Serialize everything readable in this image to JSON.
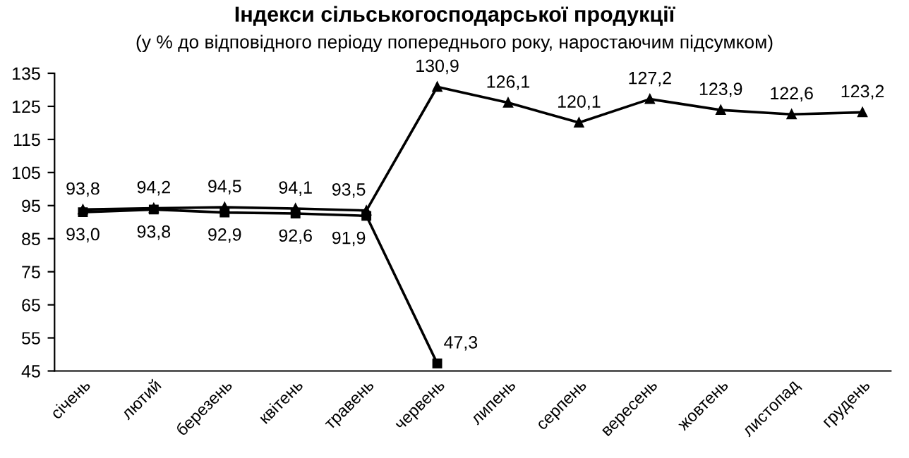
{
  "chart_data": {
    "type": "line",
    "title": "Індекси сільськогосподарської продукції",
    "subtitle": "(у % до відповідного періоду попереднього року, наростаючим підсумком)",
    "categories": [
      "січень",
      "лютий",
      "березень",
      "квітень",
      "травень",
      "червень",
      "липень",
      "серпень",
      "вересень",
      "жовтень",
      "листопад",
      "грудень"
    ],
    "series": [
      {
        "color": "#000000",
        "marker": "triangle",
        "values": [
          93.8,
          94.2,
          94.5,
          94.1,
          93.5,
          130.9,
          126.1,
          120.1,
          127.2,
          123.9,
          122.6,
          123.2
        ],
        "value_labels": [
          "93,8",
          "94,2",
          "94,5",
          "94,1",
          "93,5",
          "130,9",
          "126,1",
          "120,1",
          "127,2",
          "123,9",
          "122,6",
          "123,2"
        ]
      },
      {
        "color": "#000000",
        "marker": "square",
        "values": [
          93.0,
          93.8,
          92.9,
          92.6,
          91.9,
          47.3,
          null,
          null,
          null,
          null,
          null,
          null
        ],
        "value_labels": [
          "93,0",
          "93,8",
          "92,9",
          "92,6",
          "91,9",
          "47,3",
          null,
          null,
          null,
          null,
          null,
          null
        ]
      }
    ],
    "ylim": [
      45,
      135
    ],
    "yticks": [
      45,
      55,
      65,
      75,
      85,
      95,
      105,
      115,
      125,
      135
    ],
    "grid": false,
    "legend": false
  }
}
